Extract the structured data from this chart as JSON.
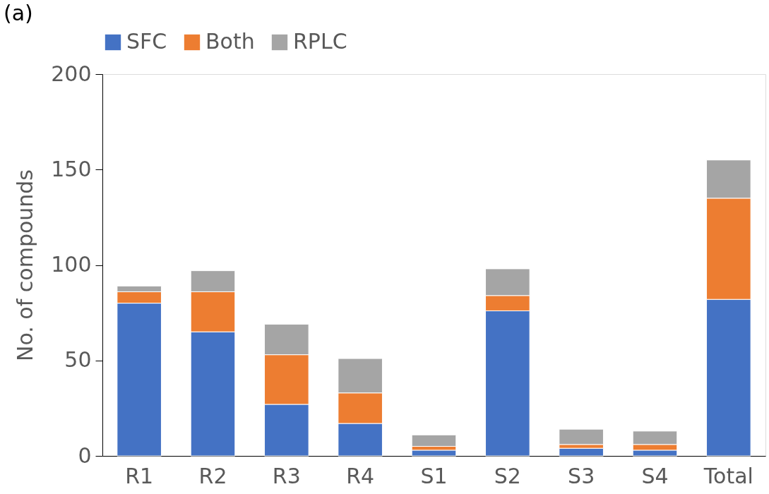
{
  "chart_data": {
    "type": "bar",
    "stacked": true,
    "title": "(a)",
    "ylabel": "No. of compounds",
    "categories": [
      "R1",
      "R2",
      "R3",
      "R4",
      "S1",
      "S2",
      "S3",
      "S4",
      "Total"
    ],
    "series": [
      {
        "name": "SFC",
        "color": "#4472c4",
        "values": [
          80,
          65,
          27,
          17,
          3,
          76,
          4,
          3,
          82
        ]
      },
      {
        "name": "Both",
        "color": "#ed7d31",
        "values": [
          6,
          21,
          26,
          16,
          2,
          8,
          2,
          3,
          53
        ]
      },
      {
        "name": "RPLC",
        "color": "#a5a5a5",
        "values": [
          3,
          11,
          16,
          18,
          6,
          14,
          8,
          7,
          20
        ]
      }
    ],
    "ylim": [
      0,
      200
    ],
    "yticks": [
      0,
      50,
      100,
      150,
      200
    ],
    "grid": false,
    "legend": "top"
  }
}
